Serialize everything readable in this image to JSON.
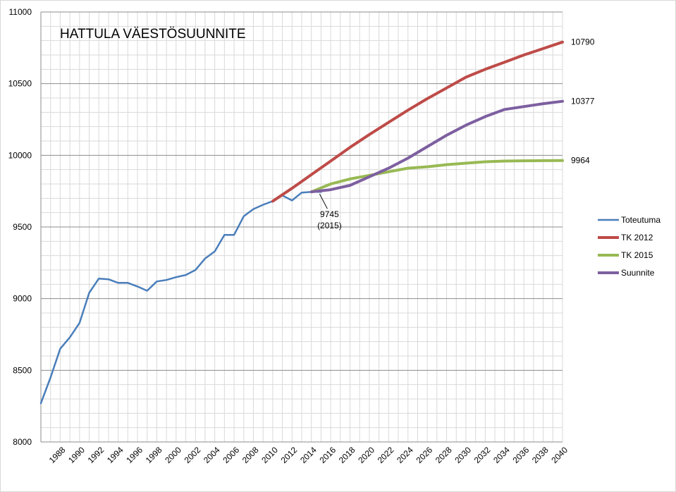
{
  "chart_data": {
    "type": "line",
    "title": "HATTULA VÄESTÖSUUNNITE",
    "xlabel": "",
    "ylabel": "",
    "xlim": [
      1986,
      2040
    ],
    "ylim": [
      8000,
      11000
    ],
    "y_ticks": [
      "8000",
      "8500",
      "9000",
      "9500",
      "10000",
      "10500",
      "11000"
    ],
    "x_ticks": [
      "1988",
      "1990",
      "1992",
      "1994",
      "1996",
      "1998",
      "2000",
      "2002",
      "2004",
      "2006",
      "2008",
      "2010",
      "2012",
      "2014",
      "2016",
      "2018",
      "2020",
      "2022",
      "2024",
      "2026",
      "2028",
      "2030",
      "2032",
      "2034",
      "2036",
      "2038",
      "2040"
    ],
    "grid": "horizontal-and-vertical",
    "legend_position": "right",
    "series": [
      {
        "name": "Toteutuma",
        "color": "#4a7ebb",
        "width": 2.5,
        "x": [
          1986,
          1987,
          1988,
          1989,
          1990,
          1991,
          1992,
          1993,
          1994,
          1995,
          1996,
          1997,
          1998,
          1999,
          2000,
          2001,
          2002,
          2003,
          2004,
          2005,
          2006,
          2007,
          2008,
          2009,
          2010,
          2011,
          2012,
          2013,
          2014,
          2015
        ],
        "y": [
          8270,
          8450,
          8650,
          8730,
          8830,
          9040,
          9140,
          9135,
          9110,
          9110,
          9085,
          9055,
          9120,
          9130,
          9150,
          9165,
          9200,
          9280,
          9330,
          9445,
          9445,
          9575,
          9625,
          9655,
          9680,
          9720,
          9685,
          9740,
          9745,
          9745
        ]
      },
      {
        "name": "TK 2012",
        "color": "#be4b48",
        "width": 4,
        "x": [
          2010,
          2012,
          2014,
          2016,
          2018,
          2020,
          2022,
          2024,
          2026,
          2028,
          2030,
          2032,
          2034,
          2036,
          2038,
          2040
        ],
        "y": [
          9680,
          9770,
          9865,
          9960,
          10055,
          10145,
          10230,
          10315,
          10395,
          10470,
          10545,
          10600,
          10650,
          10700,
          10745,
          10790
        ]
      },
      {
        "name": "TK 2015",
        "color": "#98b954",
        "width": 4,
        "x": [
          2014,
          2016,
          2018,
          2020,
          2022,
          2024,
          2026,
          2028,
          2030,
          2032,
          2034,
          2036,
          2038,
          2040
        ],
        "y": [
          9745,
          9800,
          9835,
          9860,
          9885,
          9910,
          9920,
          9935,
          9945,
          9955,
          9960,
          9962,
          9963,
          9964
        ]
      },
      {
        "name": "Suunnite",
        "color": "#7d5fa0",
        "width": 4,
        "x": [
          2014,
          2016,
          2018,
          2020,
          2022,
          2024,
          2026,
          2028,
          2030,
          2032,
          2034,
          2036,
          2038,
          2040
        ],
        "y": [
          9745,
          9760,
          9790,
          9850,
          9910,
          9980,
          10060,
          10140,
          10210,
          10270,
          10320,
          10340,
          10360,
          10377
        ]
      }
    ],
    "annotations": [
      {
        "text": "10790",
        "x": 2040,
        "y": 10790
      },
      {
        "text": "10377",
        "x": 2040,
        "y": 10377
      },
      {
        "text": "9964",
        "x": 2040,
        "y": 9964
      },
      {
        "text": "9745",
        "text2": "(2015)",
        "x": 2015,
        "y": 9745
      }
    ]
  }
}
